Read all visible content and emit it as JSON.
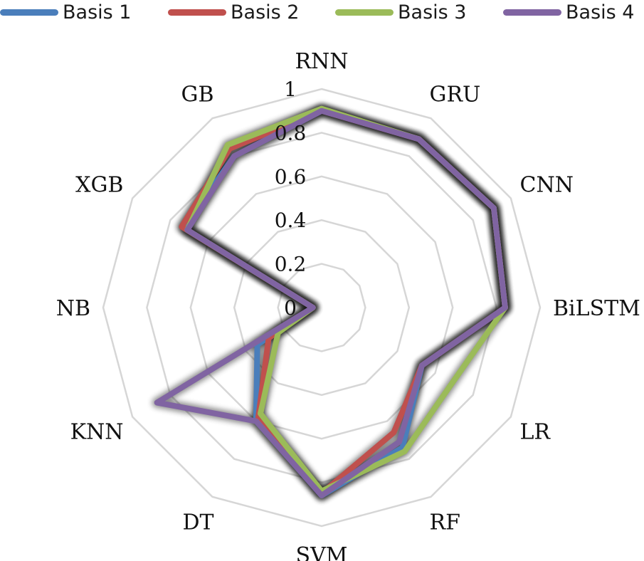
{
  "chart_data": {
    "type": "radar",
    "title": "",
    "categories": [
      "RNN",
      "GRU",
      "CNN",
      "BiLSTM",
      "LR",
      "RF",
      "SVM",
      "DT",
      "KNN",
      "NB",
      "XGB",
      "GB"
    ],
    "rlim": [
      0,
      1
    ],
    "ticks": [
      "0",
      "0.2",
      "0.4",
      "0.6",
      "0.8",
      "1"
    ],
    "tick_values": [
      0,
      0.2,
      0.4,
      0.6,
      0.8,
      1
    ],
    "grid": true,
    "legend_position": "top",
    "series": [
      {
        "name": "Basis 1",
        "color": "#4a7ebb",
        "values": [
          0.9,
          0.89,
          0.91,
          0.84,
          0.53,
          0.74,
          0.86,
          0.6,
          0.34,
          0.04,
          0.73,
          0.8
        ]
      },
      {
        "name": "Basis 2",
        "color": "#c0504d",
        "values": [
          0.9,
          0.89,
          0.91,
          0.84,
          0.53,
          0.66,
          0.85,
          0.58,
          0.28,
          0.04,
          0.74,
          0.84
        ]
      },
      {
        "name": "Basis 3",
        "color": "#9bbb59",
        "values": [
          0.91,
          0.89,
          0.91,
          0.84,
          0.69,
          0.76,
          0.84,
          0.56,
          0.23,
          0.04,
          0.71,
          0.86
        ]
      },
      {
        "name": "Basis 4",
        "color": "#8064a2",
        "values": [
          0.9,
          0.89,
          0.91,
          0.84,
          0.53,
          0.71,
          0.86,
          0.6,
          0.87,
          0.04,
          0.71,
          0.8
        ]
      }
    ]
  }
}
